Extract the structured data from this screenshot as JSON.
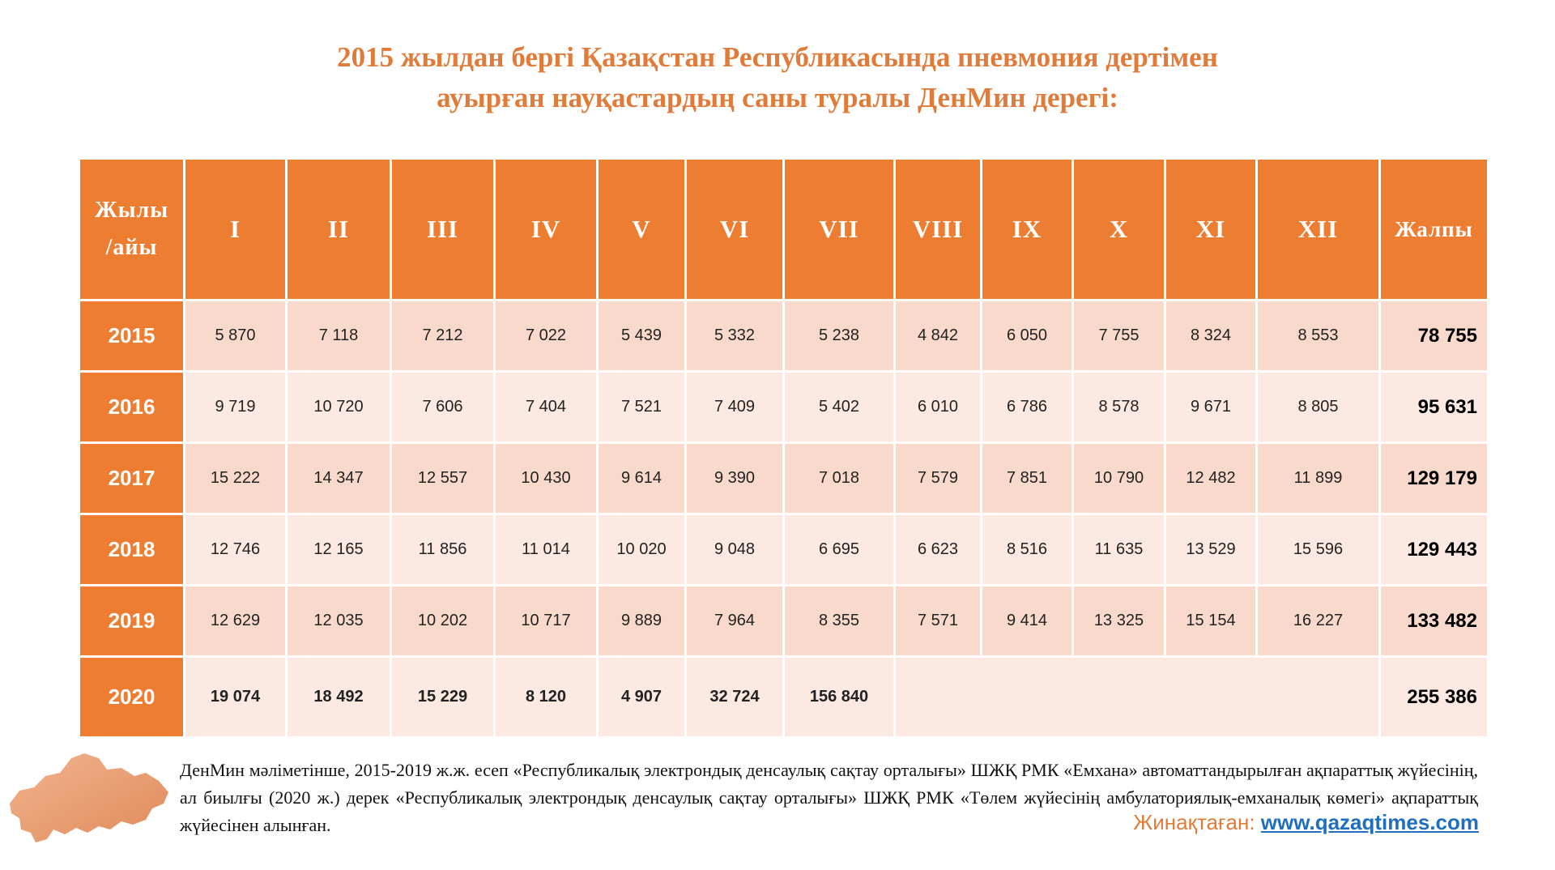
{
  "title": {
    "line1": "2015 жылдан бергі Қазақстан Республикасында пневмония дертімен",
    "line2": "ауырған науқастардың саны туралы ДенМин дерегі:"
  },
  "colors": {
    "accent": "#ed7d31",
    "title": "#e07b39",
    "row_dark": "#f8d9cc",
    "row_light": "#fbe9e2",
    "link": "#1f6fc0"
  },
  "chart_data": {
    "type": "table",
    "title": "2015 жылдан бергі Қазақстан Республикасында пневмония дертімен ауырған науқастардың саны туралы ДенМин дерегі:",
    "corner_header": {
      "line1": "Жылы",
      "line2": "/айы"
    },
    "columns": [
      "I",
      "II",
      "III",
      "IV",
      "V",
      "VI",
      "VII",
      "VIII",
      "IX",
      "X",
      "XI",
      "XII"
    ],
    "total_header": "Жалпы",
    "rows": [
      {
        "year": "2015",
        "values": [
          "5 870",
          "7 118",
          "7 212",
          "7 022",
          "5 439",
          "5 332",
          "5 238",
          "4 842",
          "6 050",
          "7 755",
          "8 324",
          "8 553"
        ],
        "total": "78 755"
      },
      {
        "year": "2016",
        "values": [
          "9 719",
          "10 720",
          "7 606",
          "7 404",
          "7 521",
          "7 409",
          "5 402",
          "6 010",
          "6 786",
          "8 578",
          "9 671",
          "8 805"
        ],
        "total": "95 631"
      },
      {
        "year": "2017",
        "values": [
          "15 222",
          "14 347",
          "12 557",
          "10 430",
          "9 614",
          "9 390",
          "7 018",
          "7 579",
          "7 851",
          "10 790",
          "12 482",
          "11 899"
        ],
        "total": "129 179"
      },
      {
        "year": "2018",
        "values": [
          "12 746",
          "12 165",
          "11 856",
          "11 014",
          "10 020",
          "9 048",
          "6 695",
          "6 623",
          "8 516",
          "11 635",
          "13 529",
          "15 596"
        ],
        "total": "129 443"
      },
      {
        "year": "2019",
        "values": [
          "12 629",
          "12 035",
          "10 202",
          "10 717",
          "9 889",
          "7 964",
          "8 355",
          "7 571",
          "9 414",
          "13 325",
          "15 154",
          "16 227"
        ],
        "total": "133 482"
      },
      {
        "year": "2020",
        "values": [
          "19 074",
          "18 492",
          "15 229",
          "8 120",
          "4 907",
          "32 724",
          "156 840"
        ],
        "total": "255 386"
      }
    ]
  },
  "footnote": {
    "text": "ДенМин мәліметінше, 2015-2019 ж.ж. есеп «Республикалық электрондық денсаулық сақтау орталығы» ШЖҚ РМК «Емхана» автоматтандырылған ақпараттық жүйесінің, ал биылғы (2020 ж.) дерек «Республикалық электрондық денсаулық сақтау орталығы» ШЖҚ РМК «Төлем жүйесінің амбулаториялық-емханалық көмегі» ақпараттық жүйесінен алынған.",
    "credit_label": "Жинақтаған: ",
    "credit_link": "www.qazaqtimes.com"
  },
  "icons": {
    "map": "kazakhstan-map-icon"
  }
}
